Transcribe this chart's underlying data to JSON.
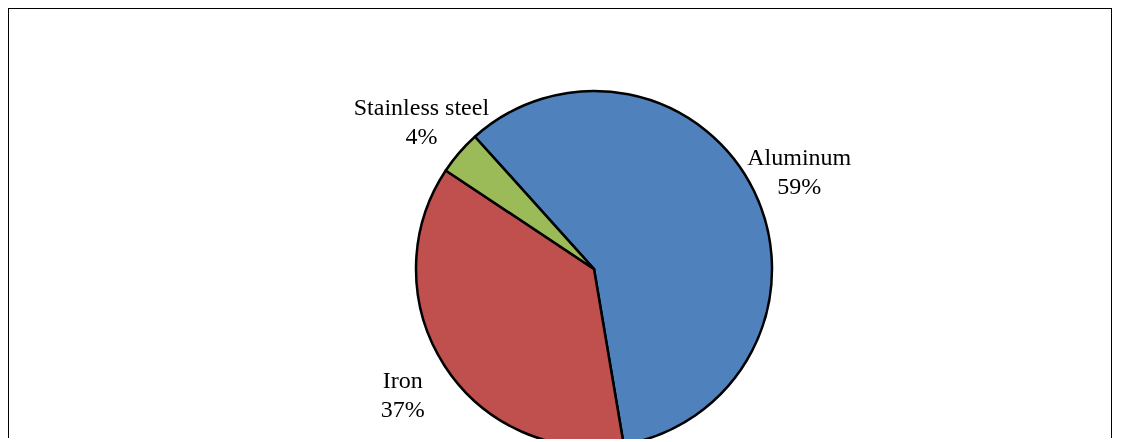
{
  "chart_data": {
    "type": "pie",
    "categories": [
      "Aluminum",
      "Iron",
      "Stainless steel"
    ],
    "values": [
      59,
      37,
      4
    ],
    "value_labels": [
      "59%",
      "37%",
      "4%"
    ],
    "colors": [
      "#4f81bd",
      "#c0504d",
      "#9bbb59"
    ]
  }
}
